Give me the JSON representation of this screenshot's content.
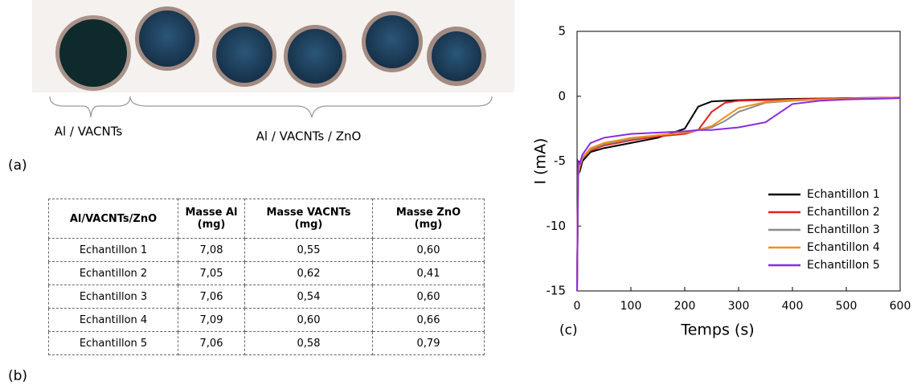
{
  "photo": {
    "panel_label": "(a)",
    "group_labels": [
      "Al / VACNTs",
      "Al / VACNTs / ZnO"
    ]
  },
  "table": {
    "panel_label": "(b)",
    "header": [
      [
        "Al/VACNTs/ZnO"
      ],
      [
        "Masse Al",
        "(mg)"
      ],
      [
        "Masse VACNTs",
        "(mg)"
      ],
      [
        "Masse ZnO",
        "(mg)"
      ]
    ],
    "rows": [
      [
        "Echantillon 1",
        "7,08",
        "0,55",
        "0,60"
      ],
      [
        "Echantillon 2",
        "7,05",
        "0,62",
        "0,41"
      ],
      [
        "Echantillon 3",
        "7,06",
        "0,54",
        "0,60"
      ],
      [
        "Echantillon 4",
        "7,09",
        "0,60",
        "0,66"
      ],
      [
        "Echantillon 5",
        "7,06",
        "0,58",
        "0,79"
      ]
    ]
  },
  "chart_data": {
    "type": "line",
    "panel_label": "(c)",
    "x_label": "Temps (s)",
    "y_label": "I (mA)",
    "xlim": [
      0,
      600
    ],
    "xticks": [
      0,
      100,
      200,
      300,
      400,
      500,
      600
    ],
    "ylim": [
      -15,
      5
    ],
    "yticks": [
      -15,
      -10,
      -5,
      0,
      5
    ],
    "legend": "lower right",
    "x": [
      0,
      2,
      5,
      10,
      25,
      50,
      100,
      150,
      200,
      225,
      250,
      275,
      300,
      350,
      400,
      450,
      500,
      550,
      600
    ],
    "series": [
      {
        "name": "Echantillon 1",
        "color": "#000000",
        "values": [
          -15,
          -6,
          -5.8,
          -5,
          -4.3,
          -4,
          -3.6,
          -3.2,
          -2.5,
          -0.8,
          -0.4,
          -0.35,
          -0.3,
          -0.25,
          -0.2,
          -0.18,
          -0.15,
          -0.12,
          -0.1
        ]
      },
      {
        "name": "Echantillon 2",
        "color": "#e3221c",
        "values": [
          -15,
          -6.2,
          -5.5,
          -4.8,
          -4.2,
          -3.8,
          -3.4,
          -3.1,
          -2.9,
          -2.6,
          -1.2,
          -0.5,
          -0.35,
          -0.3,
          -0.25,
          -0.2,
          -0.15,
          -0.12,
          -0.1
        ]
      },
      {
        "name": "Echantillon 3",
        "color": "#8c8c8c",
        "values": [
          -15,
          -6,
          -5.4,
          -4.8,
          -4.1,
          -3.7,
          -3.3,
          -3,
          -2.8,
          -2.6,
          -2.4,
          -1.9,
          -1.2,
          -0.5,
          -0.35,
          -0.25,
          -0.2,
          -0.15,
          -0.12
        ]
      },
      {
        "name": "Echantillon 4",
        "color": "#f0901e",
        "values": [
          -15,
          -6,
          -5.3,
          -4.7,
          -4,
          -3.6,
          -3.2,
          -3,
          -2.8,
          -2.6,
          -2.3,
          -1.6,
          -0.9,
          -0.45,
          -0.3,
          -0.25,
          -0.2,
          -0.15,
          -0.12
        ]
      },
      {
        "name": "Echantillon 5",
        "color": "#8a2be2",
        "values": [
          -15,
          -5,
          -5.2,
          -4.5,
          -3.6,
          -3.2,
          -2.9,
          -2.8,
          -2.7,
          -2.6,
          -2.6,
          -2.5,
          -2.4,
          -2,
          -0.6,
          -0.35,
          -0.25,
          -0.2,
          -0.15
        ]
      }
    ]
  }
}
